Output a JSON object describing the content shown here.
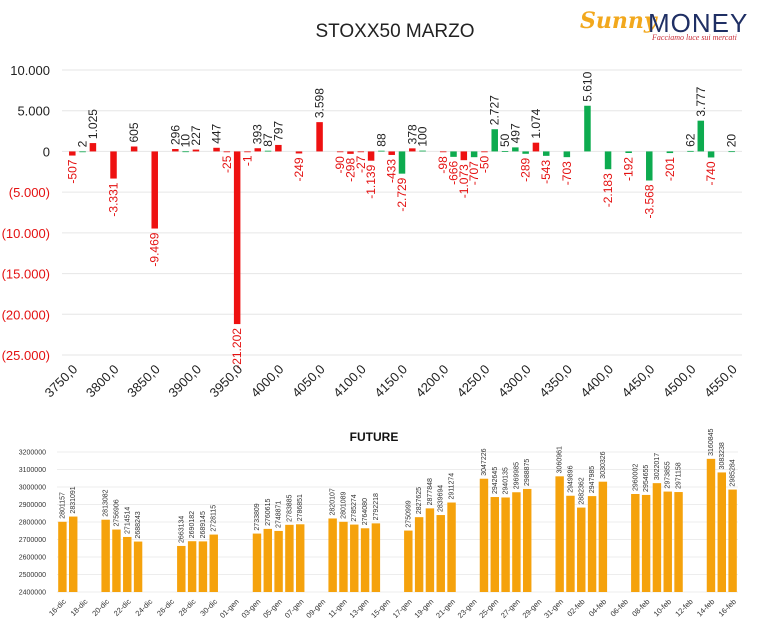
{
  "colors": {
    "positive": "#0dab4f",
    "negative": "#ee1111",
    "future": "#f5a20c",
    "text": "#222222",
    "neg_text": "#e41111"
  },
  "logo": {
    "brand_sunny": "Sunny",
    "brand_money": "MONEY",
    "tagline": "Facciamo luce sui mercati",
    "icon": "sun-icon"
  },
  "chart_data": [
    {
      "type": "bar",
      "title": "STOXX50 MARZO",
      "xlabel": "",
      "ylabel": "",
      "ylim": [
        -25000,
        10000
      ],
      "y_ticks": [
        10000,
        5000,
        0,
        -5000,
        -10000,
        -15000,
        -20000,
        -25000
      ],
      "y_tick_labels": [
        "10.000",
        "5.000",
        "0",
        "(5.000)",
        "(10.000)",
        "(15.000)",
        "(20.000)",
        "(25.000)"
      ],
      "x_tick_labels": [
        "3750,0",
        "3800,0",
        "3850,0",
        "3900,0",
        "3950,0",
        "4000,0",
        "4050,0",
        "4100,0",
        "4150,0",
        "4200,0",
        "4250,0",
        "4300,0",
        "4350,0",
        "4400,0",
        "4450,0",
        "4500,0",
        "4550,0"
      ],
      "x_tick_values": [
        3750,
        3800,
        3850,
        3900,
        3950,
        4000,
        4050,
        4100,
        4150,
        4200,
        4250,
        4300,
        4350,
        4400,
        4450,
        4500,
        4550
      ],
      "xlim": [
        3737.5,
        4562.5
      ],
      "grid": true,
      "bars": [
        {
          "strike": 3750,
          "value": -507,
          "label": "-507",
          "color": "neg"
        },
        {
          "strike": 3762.5,
          "value": 2,
          "label": "2",
          "color": "pos"
        },
        {
          "strike": 3775,
          "value": 1025,
          "label": "1.025",
          "color": "neg"
        },
        {
          "strike": 3800,
          "value": -3331,
          "label": "-3.331",
          "color": "neg"
        },
        {
          "strike": 3825,
          "value": 605,
          "label": "605",
          "color": "neg"
        },
        {
          "strike": 3850,
          "value": -9469,
          "label": "-9.469",
          "color": "neg"
        },
        {
          "strike": 3875,
          "value": 296,
          "label": "296",
          "color": "neg"
        },
        {
          "strike": 3887.5,
          "value": 10,
          "label": "10",
          "color": "pos"
        },
        {
          "strike": 3900,
          "value": 227,
          "label": "227",
          "color": "neg"
        },
        {
          "strike": 3925,
          "value": 447,
          "label": "447",
          "color": "neg"
        },
        {
          "strike": 3937.5,
          "value": -25,
          "label": "-25",
          "color": "neg"
        },
        {
          "strike": 3950,
          "value": -21202,
          "label": "-21.202",
          "color": "neg"
        },
        {
          "strike": 3962.5,
          "value": -1,
          "label": "-1",
          "color": "neg"
        },
        {
          "strike": 3975,
          "value": 393,
          "label": "393",
          "color": "neg"
        },
        {
          "strike": 3987.5,
          "value": 87,
          "label": "87",
          "color": "pos"
        },
        {
          "strike": 4000,
          "value": 797,
          "label": "797",
          "color": "neg"
        },
        {
          "strike": 4025,
          "value": -249,
          "label": "-249",
          "color": "neg"
        },
        {
          "strike": 4050,
          "value": 3598,
          "label": "3.598",
          "color": "neg"
        },
        {
          "strike": 4075,
          "value": -90,
          "label": "-90",
          "color": "neg"
        },
        {
          "strike": 4087.5,
          "value": -298,
          "label": "-298",
          "color": "neg"
        },
        {
          "strike": 4100,
          "value": -27,
          "label": "-27",
          "color": "neg"
        },
        {
          "strike": 4112.5,
          "value": -1139,
          "label": "-1.139",
          "color": "neg"
        },
        {
          "strike": 4125,
          "value": 88,
          "label": "88",
          "color": "pos"
        },
        {
          "strike": 4137.5,
          "value": -433,
          "label": "-433",
          "color": "neg"
        },
        {
          "strike": 4150,
          "value": -2729,
          "label": "-2.729",
          "color": "pos"
        },
        {
          "strike": 4162.5,
          "value": 378,
          "label": "378",
          "color": "neg"
        },
        {
          "strike": 4175,
          "value": 100,
          "label": "100",
          "color": "pos"
        },
        {
          "strike": 4200,
          "value": -98,
          "label": "-98",
          "color": "neg"
        },
        {
          "strike": 4212.5,
          "value": -666,
          "label": "-666",
          "color": "pos"
        },
        {
          "strike": 4225,
          "value": -1073,
          "label": "-1.073",
          "color": "neg"
        },
        {
          "strike": 4237.5,
          "value": -707,
          "label": "-707",
          "color": "pos"
        },
        {
          "strike": 4250,
          "value": -50,
          "label": "-50",
          "color": "neg"
        },
        {
          "strike": 4262.5,
          "value": 2727,
          "label": "2.727",
          "color": "pos"
        },
        {
          "strike": 4275,
          "value": 50,
          "label": "50",
          "color": "pos"
        },
        {
          "strike": 4287.5,
          "value": 497,
          "label": "497",
          "color": "pos"
        },
        {
          "strike": 4300,
          "value": -289,
          "label": "-289",
          "color": "pos"
        },
        {
          "strike": 4312.5,
          "value": 1074,
          "label": "1.074",
          "color": "neg"
        },
        {
          "strike": 4325,
          "value": -543,
          "label": "-543",
          "color": "pos"
        },
        {
          "strike": 4350,
          "value": -703,
          "label": "-703",
          "color": "pos"
        },
        {
          "strike": 4375,
          "value": 5610,
          "label": "5.610",
          "color": "pos"
        },
        {
          "strike": 4400,
          "value": -2183,
          "label": "-2.183",
          "color": "pos"
        },
        {
          "strike": 4425,
          "value": -192,
          "label": "-192",
          "color": "pos"
        },
        {
          "strike": 4450,
          "value": -3568,
          "label": "-3.568",
          "color": "pos"
        },
        {
          "strike": 4475,
          "value": -201,
          "label": "-201",
          "color": "pos"
        },
        {
          "strike": 4500,
          "value": 62,
          "label": "62",
          "color": "pos"
        },
        {
          "strike": 4512.5,
          "value": 3777,
          "label": "3.777",
          "color": "pos"
        },
        {
          "strike": 4525,
          "value": -740,
          "label": "-740",
          "color": "pos"
        },
        {
          "strike": 4550,
          "value": 20,
          "label": "20",
          "color": "pos"
        }
      ]
    },
    {
      "type": "bar",
      "title": "FUTURE",
      "xlabel": "",
      "ylabel": "",
      "ylim": [
        2400000,
        3200000
      ],
      "y_ticks": [
        3200000,
        3100000,
        3000000,
        2900000,
        2800000,
        2700000,
        2600000,
        2500000,
        2400000
      ],
      "y_tick_labels": [
        "3200000",
        "3100000",
        "3000000",
        "2900000",
        "2800000",
        "2700000",
        "2600000",
        "2500000",
        "2400000"
      ],
      "x_tick_labels": [
        "16-dic",
        "18-dic",
        "20-dic",
        "22-dic",
        "24-dic",
        "26-dic",
        "28-dic",
        "30-dic",
        "01-gen",
        "03-gen",
        "05-gen",
        "07-gen",
        "09-gen",
        "11-gen",
        "13-gen",
        "15-gen",
        "17-gen",
        "19-gen",
        "21-gen",
        "23-gen",
        "25-gen",
        "27-gen",
        "29-gen",
        "31-gen",
        "02-feb",
        "04-feb",
        "06-feb",
        "08-feb",
        "10-feb",
        "12-feb",
        "14-feb",
        "16-feb"
      ],
      "day_count": 63,
      "bars": [
        {
          "day": 0,
          "value": 2801157
        },
        {
          "day": 1,
          "value": 2831091
        },
        {
          "day": 4,
          "value": 2813082
        },
        {
          "day": 5,
          "value": 2756906
        },
        {
          "day": 6,
          "value": 2714514
        },
        {
          "day": 7,
          "value": 2688243
        },
        {
          "day": 11,
          "value": 2663134
        },
        {
          "day": 12,
          "value": 2690182
        },
        {
          "day": 13,
          "value": 2689145
        },
        {
          "day": 14,
          "value": 2728115
        },
        {
          "day": 18,
          "value": 2733809
        },
        {
          "day": 19,
          "value": 2760615
        },
        {
          "day": 20,
          "value": 2748871
        },
        {
          "day": 21,
          "value": 2783885
        },
        {
          "day": 22,
          "value": 2786851
        },
        {
          "day": 25,
          "value": 2820107
        },
        {
          "day": 26,
          "value": 2801089
        },
        {
          "day": 27,
          "value": 2785274
        },
        {
          "day": 28,
          "value": 2764080
        },
        {
          "day": 29,
          "value": 2792218
        },
        {
          "day": 32,
          "value": 2750999
        },
        {
          "day": 33,
          "value": 2827625
        },
        {
          "day": 34,
          "value": 2877848
        },
        {
          "day": 35,
          "value": 2839694
        },
        {
          "day": 36,
          "value": 2911274
        },
        {
          "day": 39,
          "value": 3047226
        },
        {
          "day": 40,
          "value": 2942645
        },
        {
          "day": 41,
          "value": 2940135
        },
        {
          "day": 42,
          "value": 2969985
        },
        {
          "day": 43,
          "value": 2988875
        },
        {
          "day": 46,
          "value": 3060961
        },
        {
          "day": 47,
          "value": 2949896
        },
        {
          "day": 48,
          "value": 2882362
        },
        {
          "day": 49,
          "value": 2947985
        },
        {
          "day": 50,
          "value": 3030326
        },
        {
          "day": 53,
          "value": 2960002
        },
        {
          "day": 54,
          "value": 2954655
        },
        {
          "day": 55,
          "value": 3022017
        },
        {
          "day": 56,
          "value": 2973855
        },
        {
          "day": 57,
          "value": 2971158
        },
        {
          "day": 60,
          "value": 3160845
        },
        {
          "day": 61,
          "value": 3083238
        },
        {
          "day": 62,
          "value": 2985284
        }
      ]
    }
  ]
}
